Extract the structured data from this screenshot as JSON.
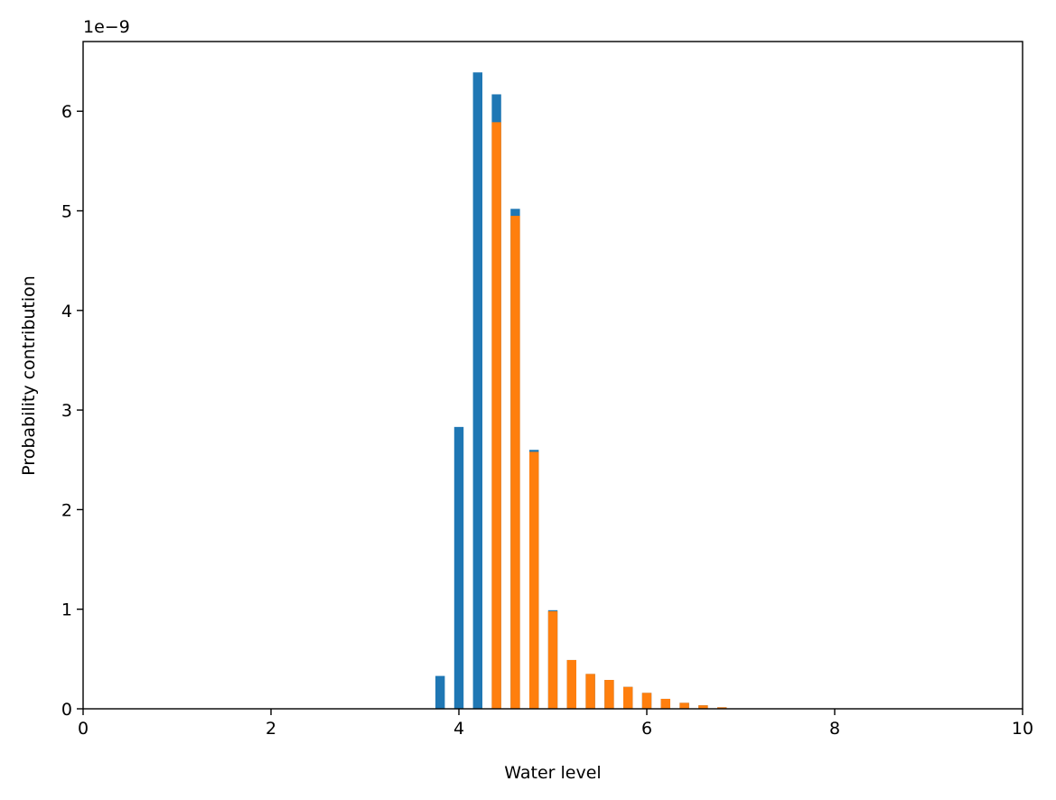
{
  "chart_data": {
    "type": "bar",
    "xlabel": "Water level",
    "ylabel": "Probability contribution",
    "offset_label": "1e−9",
    "xlim": [
      0,
      10
    ],
    "ylim": [
      0,
      6.7
    ],
    "x_ticks": [
      0,
      2,
      4,
      6,
      8,
      10
    ],
    "y_ticks": [
      0,
      1,
      2,
      3,
      4,
      5,
      6
    ],
    "grid": false,
    "bar_width": 0.1,
    "series": [
      {
        "color": "#1f77b4",
        "x": [
          3.8,
          4.0,
          4.2,
          4.4,
          4.6,
          4.8,
          5.0,
          5.2,
          5.4,
          5.6,
          5.8,
          6.0,
          6.2,
          6.4,
          6.6,
          6.8
        ],
        "values": [
          0.33,
          2.83,
          6.39,
          6.17,
          5.02,
          2.6,
          0.99,
          0.49,
          0.35,
          0.29,
          0.22,
          0.16,
          0.1,
          0.06,
          0.035,
          0.015
        ]
      },
      {
        "color": "#ff7f0e",
        "x": [
          4.4,
          4.6,
          4.8,
          5.0,
          5.2,
          5.4,
          5.6,
          5.8,
          6.0,
          6.2,
          6.4,
          6.6,
          6.8
        ],
        "values": [
          5.89,
          4.95,
          2.58,
          0.98,
          0.49,
          0.35,
          0.29,
          0.22,
          0.16,
          0.1,
          0.06,
          0.035,
          0.015
        ]
      }
    ]
  }
}
